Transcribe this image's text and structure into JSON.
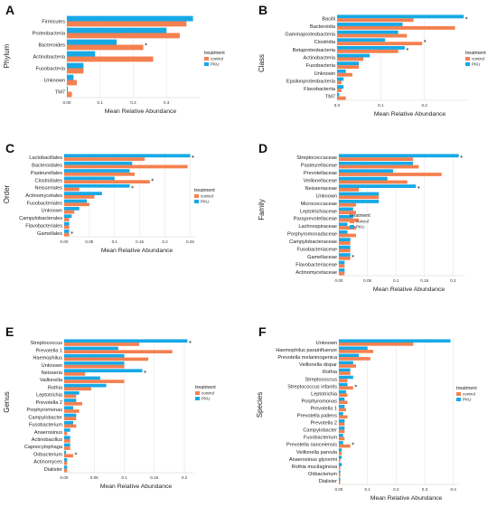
{
  "colors": {
    "control": "#F4804F",
    "PKU": "#17A9E6",
    "grid": "#e6e6e6",
    "axis": "#cfcfcf"
  },
  "chart_data": [
    {
      "panel": "A",
      "type": "bar",
      "orientation": "horizontal",
      "ylabel": "Phylum",
      "xlabel": "Mean Relative Abundance",
      "categories": [
        "Firmicutes",
        "Proteobacteria",
        "Bacteroides",
        "Actinobacteria",
        "Fusobacteria",
        "Unknown",
        "TM7"
      ],
      "series": [
        {
          "name": "control",
          "values": [
            0.36,
            0.34,
            0.23,
            0.26,
            0.05,
            0.03,
            0.015
          ]
        },
        {
          "name": "PKU",
          "values": [
            0.38,
            0.3,
            0.15,
            0.085,
            0.05,
            0.02,
            0.003
          ]
        }
      ],
      "significant": [
        "Bacteroides"
      ],
      "xlim": [
        0,
        0.4
      ],
      "xticks": [
        0.0,
        0.1,
        0.2,
        0.3
      ],
      "legend": {
        "title": "treatment",
        "items": [
          "control",
          "PKU"
        ],
        "position": "right"
      }
    },
    {
      "panel": "B",
      "type": "bar",
      "orientation": "horizontal",
      "ylabel": "Class",
      "xlabel": "Mean Relative Abundance",
      "categories": [
        "Bacilli",
        "Bacteroidia",
        "Gammaproteobacteria",
        "Clostridia",
        "Betaproteobacteria",
        "Actinobacteria",
        "Fusobacteria",
        "Unknown",
        "Epsilonproteobacteria",
        "Flavobacteriia",
        "TM7"
      ],
      "series": [
        {
          "name": "control",
          "values": [
            0.175,
            0.27,
            0.16,
            0.195,
            0.14,
            0.06,
            0.05,
            0.035,
            0.01,
            0.01,
            0.02
          ]
        },
        {
          "name": "PKU",
          "values": [
            0.29,
            0.15,
            0.14,
            0.11,
            0.155,
            0.075,
            0.05,
            0.02,
            0.015,
            0.015,
            0.005
          ]
        }
      ],
      "significant": [
        "Bacilli",
        "Clostridia",
        "Betaproteobacteria"
      ],
      "xlim": [
        0,
        0.3
      ],
      "xticks": [
        0.0,
        0.1,
        0.2
      ],
      "legend": {
        "title": "treatment",
        "items": [
          "control",
          "PKU"
        ],
        "position": "right"
      }
    },
    {
      "panel": "C",
      "type": "bar",
      "orientation": "horizontal",
      "ylabel": "Order",
      "xlabel": "Mean Relative Abundance",
      "categories": [
        "Lactobacillales",
        "Bacteroidales",
        "Pasteurellales",
        "Clostridiales",
        "Neisseriales",
        "Actinomycetales",
        "Fusobacteriales",
        "Unknown",
        "Campylobacterales",
        "Flavobacteriales",
        "Gamellales"
      ],
      "series": [
        {
          "name": "control",
          "values": [
            0.16,
            0.245,
            0.14,
            0.17,
            0.03,
            0.06,
            0.05,
            0.02,
            0.01,
            0.01,
            0.01
          ]
        },
        {
          "name": "PKU",
          "values": [
            0.25,
            0.135,
            0.13,
            0.1,
            0.13,
            0.075,
            0.045,
            0.03,
            0.015,
            0.01,
            0.01
          ]
        }
      ],
      "significant": [
        "Lactobacillales",
        "Clostridiales",
        "Neisseriales",
        "Gamellales"
      ],
      "xlim": [
        0,
        0.26
      ],
      "xticks": [
        0.0,
        0.05,
        0.1,
        0.15,
        0.2,
        0.25
      ],
      "legend": {
        "title": "treatment",
        "items": [
          "control",
          "PKU"
        ],
        "position": "right"
      }
    },
    {
      "panel": "D",
      "type": "bar",
      "orientation": "horizontal",
      "ylabel": "Family",
      "xlabel": "Mean Relative Abundance",
      "categories": [
        "Streptococcaceae",
        "Pasteurellaceae",
        "Prevotellaceae",
        "Veillonellaceae",
        "Neisseriaceae",
        "Unknown",
        "Micrococcaceae",
        "Leptotrichiaceae",
        "Paraprevotellaceae",
        "Lachnospiraceae",
        "Porphyromonadaceae",
        "Campylobacteraceae",
        "Fusobacteriaceae",
        "Gamellaceae",
        "Flavobacteriaceae",
        "Actinomycetaceae"
      ],
      "series": [
        {
          "name": "control",
          "values": [
            0.13,
            0.14,
            0.18,
            0.12,
            0.035,
            0.07,
            0.03,
            0.03,
            0.035,
            0.03,
            0.03,
            0.02,
            0.02,
            0.02,
            0.01,
            0.01
          ]
        },
        {
          "name": "PKU",
          "values": [
            0.21,
            0.13,
            0.095,
            0.085,
            0.135,
            0.07,
            0.07,
            0.025,
            0.025,
            0.015,
            0.015,
            0.02,
            0.02,
            0.02,
            0.01,
            0.01
          ]
        }
      ],
      "significant": [
        "Streptococcaceae",
        "Neisseriaceae",
        "Gamellaceae"
      ],
      "xlim": [
        0,
        0.22
      ],
      "xticks": [
        0.0,
        0.05,
        0.1,
        0.15,
        0.2
      ],
      "legend": {
        "title": "treatment",
        "items": [
          "control",
          "PKU"
        ],
        "position": "right"
      }
    },
    {
      "panel": "E",
      "type": "bar",
      "orientation": "horizontal",
      "ylabel": "Genus",
      "xlabel": "Mean Relative Abundance",
      "categories": [
        "Streptococcus",
        "Prevotella 1",
        "Haemophilus",
        "Unknown",
        "Neisseria",
        "Vaillonella",
        "Rothia",
        "Leptotrichia",
        "Prevotella 2",
        "Porphyromonas",
        "Campylobacter",
        "Fusobacterium",
        "Anaerosinus",
        "Actinobacillus",
        "Capnocytophaga",
        "Oribacterium",
        "Actinomyces",
        "Dialister"
      ],
      "series": [
        {
          "name": "control",
          "values": [
            0.125,
            0.18,
            0.14,
            0.1,
            0.035,
            0.1,
            0.045,
            0.02,
            0.03,
            0.025,
            0.02,
            0.02,
            0.005,
            0.01,
            0.01,
            0.015,
            0.005,
            0.005
          ]
        },
        {
          "name": "PKU",
          "values": [
            0.205,
            0.09,
            0.1,
            0.1,
            0.13,
            0.06,
            0.07,
            0.025,
            0.02,
            0.015,
            0.02,
            0.015,
            0.01,
            0.01,
            0.01,
            0.003,
            0.005,
            0.005
          ]
        }
      ],
      "significant": [
        "Streptococcus",
        "Neisseria",
        "Oribacterium"
      ],
      "xlim": [
        0,
        0.215
      ],
      "xticks": [
        0.0,
        0.05,
        0.1,
        0.15,
        0.2
      ],
      "legend": {
        "title": "treatment",
        "items": [
          "control",
          "PKU"
        ],
        "position": "right"
      }
    },
    {
      "panel": "F",
      "type": "bar",
      "orientation": "horizontal",
      "ylabel": "Species",
      "xlabel": "Mean Relative Abundance",
      "categories": [
        "Unknown",
        "Haemophilus parainfluenze",
        "Prevotella melaninogenica",
        "Veillonella dispar",
        "Rothia",
        "Streptococcus",
        "Streptococcus infantis",
        "Leptotrichia",
        "Porphyromonas",
        "Prevotella 1",
        "Prevotella pallens",
        "Prevotella 2",
        "Campylobacter",
        "Fusobacterium",
        "Prevotella nanceiensis",
        "Veillonella parvula",
        "Anaerosinus glycerini",
        "Rothia mucilaginosa",
        "Oribacterium",
        "Dialister"
      ],
      "series": [
        {
          "name": "control",
          "values": [
            0.26,
            0.12,
            0.11,
            0.06,
            0.04,
            0.03,
            0.05,
            0.03,
            0.03,
            0.025,
            0.03,
            0.02,
            0.02,
            0.02,
            0.04,
            0.01,
            0.005,
            0.005,
            0.005,
            0.005
          ]
        },
        {
          "name": "PKU",
          "values": [
            0.39,
            0.1,
            0.07,
            0.05,
            0.04,
            0.05,
            0.03,
            0.025,
            0.02,
            0.02,
            0.015,
            0.02,
            0.02,
            0.015,
            0.015,
            0.01,
            0.01,
            0.01,
            0.005,
            0.005
          ]
        }
      ],
      "significant": [
        "Streptococcus infantis",
        "Prevotella nanceiensis"
      ],
      "xlim": [
        0,
        0.42
      ],
      "xticks": [
        0.0,
        0.1,
        0.2,
        0.3,
        0.4
      ],
      "legend": {
        "title": "treatment",
        "items": [
          "control",
          "PKU"
        ],
        "position": "right"
      }
    }
  ]
}
